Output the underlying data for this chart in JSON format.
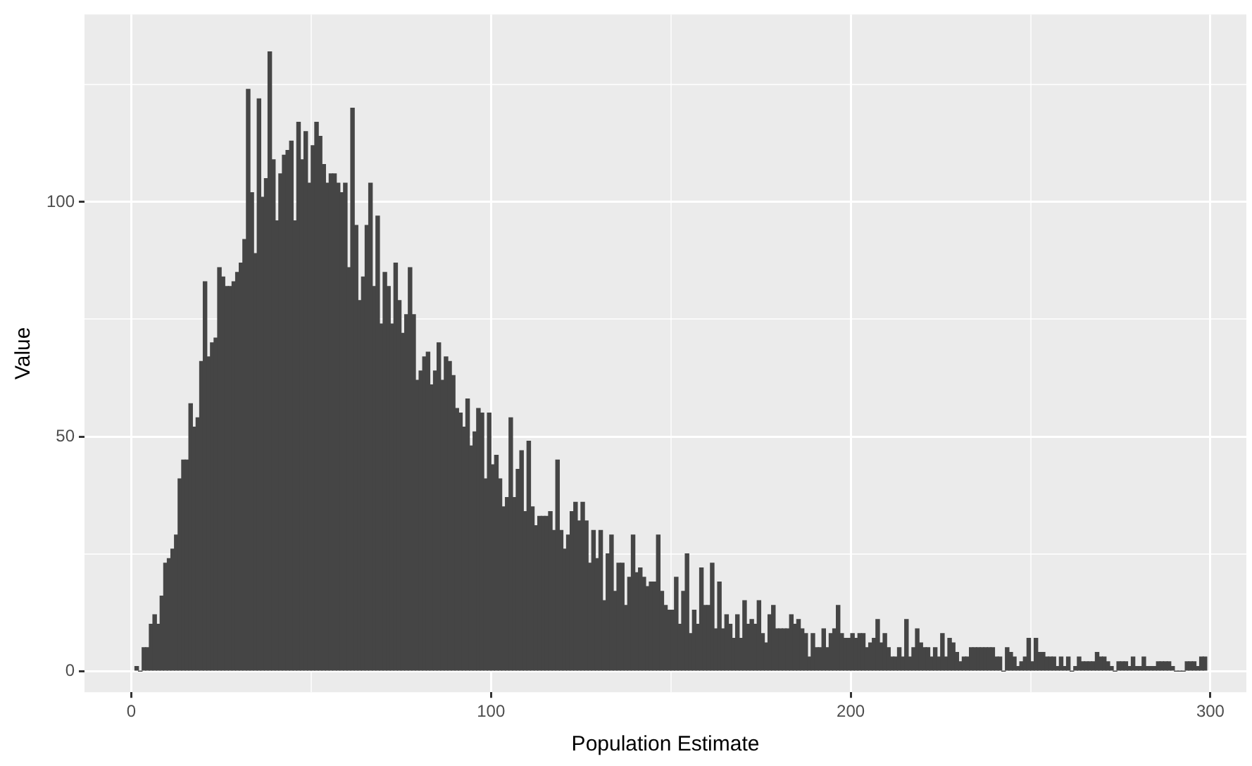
{
  "chart_data": {
    "type": "histogram",
    "xlabel": "Population Estimate",
    "ylabel": "Value",
    "color": "#454545",
    "grid": true,
    "xlim": [
      -13,
      310
    ],
    "ylim": [
      -4.5,
      140
    ],
    "xticks": [
      0,
      {
        "value": 50,
        "label": null
      },
      100,
      {
        "value": 150,
        "label": null
      },
      200,
      {
        "value": 250,
        "label": null
      },
      300
    ],
    "yticks": [
      0,
      {
        "value": 25,
        "label": null
      },
      50,
      {
        "value": 75,
        "label": null
      },
      100,
      {
        "value": 125,
        "label": null
      }
    ],
    "bins": [
      1,
      2,
      3,
      4,
      5,
      6,
      7,
      8,
      9,
      10,
      11,
      12,
      13,
      14,
      15,
      16,
      17,
      18,
      19,
      20,
      21,
      22,
      23,
      24,
      25,
      26,
      27,
      28,
      29,
      30,
      31,
      32,
      33,
      34,
      35,
      36,
      37,
      38,
      39,
      40,
      41,
      42,
      43,
      44,
      45,
      46,
      47,
      48,
      49,
      50,
      51,
      52,
      53,
      54,
      55,
      56,
      57,
      58,
      59,
      60,
      61,
      62,
      63,
      64,
      65,
      66,
      67,
      68,
      69,
      70,
      71,
      72,
      73,
      74,
      75,
      76,
      77,
      78,
      79,
      80,
      81,
      82,
      83,
      84,
      85,
      86,
      87,
      88,
      89,
      90,
      91,
      92,
      93,
      94,
      95,
      96,
      97,
      98,
      99,
      100,
      101,
      102,
      103,
      104,
      105,
      106,
      107,
      108,
      109,
      110,
      111,
      112,
      113,
      114,
      115,
      116,
      117,
      118,
      119,
      120,
      121,
      122,
      123,
      124,
      125,
      126,
      127,
      128,
      129,
      130,
      131,
      132,
      133,
      134,
      135,
      136,
      137,
      138,
      139,
      140,
      141,
      142,
      143,
      144,
      145,
      146,
      147,
      148,
      149,
      150,
      151,
      152,
      153,
      154,
      155,
      156,
      157,
      158,
      159,
      160,
      161,
      162,
      163,
      164,
      165,
      166,
      167,
      168,
      169,
      170,
      171,
      172,
      173,
      174,
      175,
      176,
      177,
      178,
      179,
      180,
      181,
      182,
      183,
      184,
      185,
      186,
      187,
      188,
      189,
      190,
      191,
      192,
      193,
      194,
      195,
      196,
      197,
      198,
      199,
      200,
      201,
      202,
      203,
      204,
      205,
      206,
      207,
      208,
      209,
      210,
      211,
      212,
      213,
      214,
      215,
      216,
      217,
      218,
      219,
      220,
      221,
      222,
      223,
      224,
      225,
      226,
      227,
      228,
      229,
      230,
      231,
      232,
      233,
      234,
      235,
      236,
      237,
      238,
      239,
      240,
      241,
      242,
      243,
      244,
      245,
      246,
      247,
      248,
      249,
      250,
      251,
      252,
      253,
      254,
      255,
      256,
      257,
      258,
      259,
      260,
      261,
      262,
      263,
      264,
      265,
      266,
      267,
      268,
      269,
      270,
      271,
      272,
      273,
      274,
      275,
      276,
      277,
      278,
      279,
      280,
      281,
      282,
      283,
      284,
      285,
      286,
      287,
      288,
      289,
      290,
      291,
      292,
      293,
      294,
      295,
      296,
      297,
      298,
      299
    ],
    "values": [
      1,
      0,
      5,
      5,
      10,
      12,
      10,
      16,
      23,
      24,
      26,
      29,
      41,
      45,
      45,
      57,
      52,
      54,
      66,
      83,
      67,
      70,
      71,
      86,
      84,
      82,
      82,
      83,
      85,
      87,
      92,
      124,
      102,
      89,
      122,
      101,
      105,
      132,
      109,
      96,
      106,
      110,
      111,
      113,
      96,
      117,
      109,
      115,
      104,
      112,
      117,
      114,
      108,
      104,
      106,
      106,
      104,
      102,
      104,
      86,
      120,
      95,
      79,
      84,
      95,
      104,
      82,
      97,
      74,
      85,
      82,
      74,
      87,
      79,
      72,
      76,
      86,
      76,
      62,
      64,
      67,
      68,
      61,
      64,
      70,
      62,
      67,
      66,
      63,
      56,
      55,
      52,
      58,
      48,
      51,
      56,
      55,
      41,
      55,
      44,
      46,
      41,
      35,
      37,
      54,
      37,
      43,
      47,
      34,
      49,
      35,
      31,
      33,
      33,
      33,
      34,
      30,
      45,
      30,
      26,
      29,
      34,
      36,
      32,
      36,
      32,
      23,
      30,
      24,
      30,
      15,
      25,
      29,
      17,
      23,
      23,
      14,
      20,
      29,
      21,
      22,
      20,
      18,
      19,
      19,
      29,
      17,
      14,
      13,
      13,
      20,
      10,
      17,
      25,
      8,
      13,
      10,
      22,
      14,
      14,
      23,
      9,
      19,
      9,
      12,
      10,
      7,
      12,
      7,
      15,
      10,
      11,
      10,
      15,
      8,
      6,
      12,
      14,
      9,
      9,
      9,
      9,
      12,
      10,
      11,
      9,
      8,
      3,
      8,
      5,
      5,
      9,
      5,
      8,
      9,
      14,
      8,
      7,
      7,
      8,
      7,
      8,
      8,
      5,
      6,
      7,
      11,
      6,
      8,
      5,
      3,
      3,
      5,
      3,
      11,
      3,
      5,
      9,
      6,
      5,
      5,
      3,
      5,
      3,
      8,
      3,
      7,
      6,
      4,
      2,
      3,
      3,
      5,
      5,
      5,
      5,
      5,
      5,
      5,
      3,
      3,
      0,
      5,
      4,
      3,
      1,
      2,
      3,
      7,
      2,
      7,
      4,
      4,
      3,
      3,
      3,
      1,
      3,
      1,
      3,
      0,
      1,
      3,
      2,
      2,
      2,
      2,
      4,
      3,
      3,
      2,
      1,
      0,
      2,
      2,
      2,
      1,
      3,
      1,
      1,
      3,
      1,
      1,
      1,
      2,
      2,
      2,
      2,
      1,
      0,
      0,
      0,
      2,
      2,
      2,
      1,
      3,
      3
    ]
  }
}
